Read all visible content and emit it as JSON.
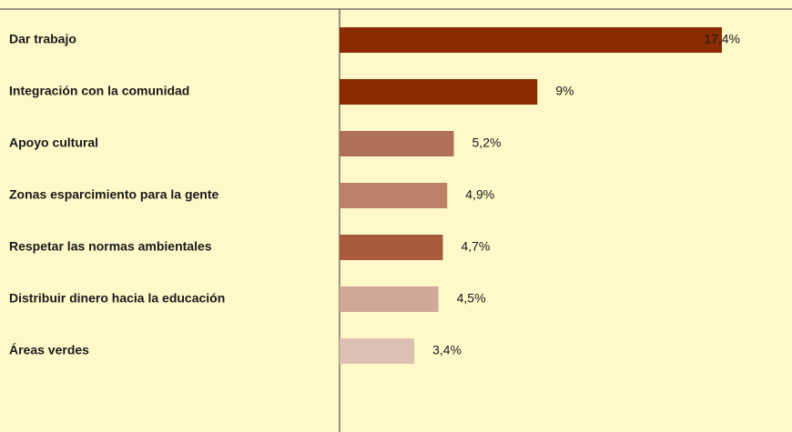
{
  "chart_data": {
    "type": "hbar",
    "categories": [
      "Dar trabajo",
      "Integración con la comunidad",
      "Apoyo cultural",
      "Zonas esparcimiento para la gente",
      "Respetar las normas ambientales",
      "Distribuir dinero hacia la educación",
      "Áreas verdes"
    ],
    "values": [
      17.4,
      9,
      5.2,
      4.9,
      4.7,
      4.5,
      3.4
    ],
    "value_labels": [
      "17,4%",
      "9%",
      "5,2%",
      "4,9%",
      "4,7%",
      "4,5%",
      "3,4%"
    ],
    "colors": [
      "#8b2c00",
      "#8b2c00",
      "#b07058",
      "#bb8068",
      "#a85a3c",
      "#cfa898",
      "#dcc0b4"
    ]
  }
}
